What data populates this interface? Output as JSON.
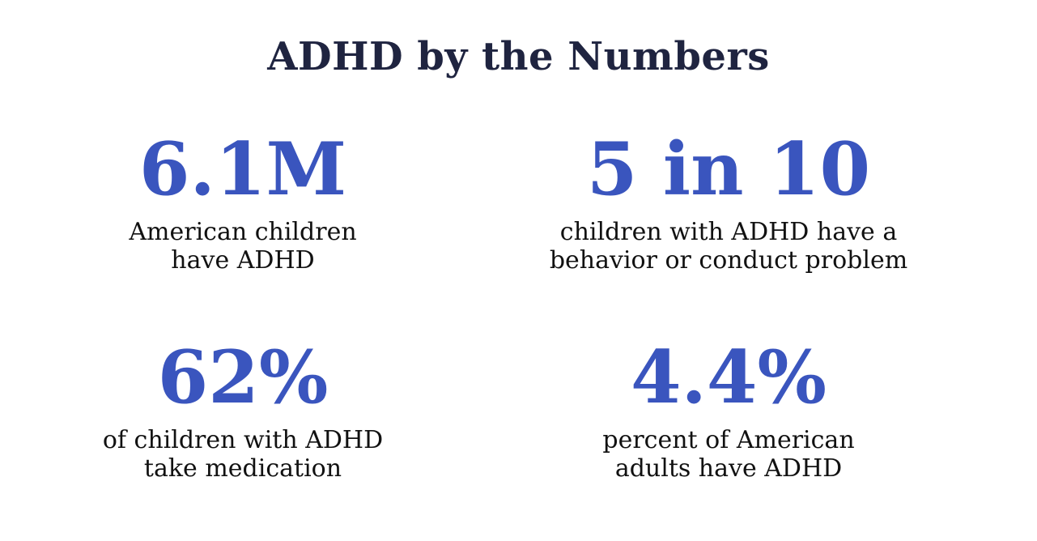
{
  "page": {
    "title": "ADHD by the Numbers"
  },
  "colors": {
    "title_navy": "#1f2440",
    "stat_blue": "#3a55be",
    "caption_black": "#111111",
    "background": "#ffffff"
  },
  "stats": [
    {
      "value": "6.1M",
      "caption": "American children have ADHD",
      "caption_lines": [
        "American children",
        "have ADHD"
      ]
    },
    {
      "value": "5 in 10",
      "caption": "children with ADHD have a behavior or conduct problem",
      "caption_lines": [
        "children with ADHD have a",
        "behavior or conduct problem"
      ]
    },
    {
      "value": "62%",
      "caption": "of children with ADHD take medication",
      "caption_lines": [
        "of children with ADHD",
        "take medication"
      ]
    },
    {
      "value": "4.4%",
      "caption": "percent of American adults have ADHD",
      "caption_lines": [
        "percent of American",
        "adults have ADHD"
      ]
    }
  ],
  "chart_data": {
    "type": "table",
    "title": "ADHD by the Numbers",
    "layout": "2x2 stat grid, big blue numbers with black captions",
    "items": [
      {
        "display_value": "6.1M",
        "numeric_value": 6100000,
        "unit": "children",
        "label": "American children have ADHD"
      },
      {
        "display_value": "5 in 10",
        "numeric_value": 0.5,
        "unit": "ratio",
        "label": "children with ADHD have a behavior or conduct problem"
      },
      {
        "display_value": "62%",
        "numeric_value": 62,
        "unit": "percent",
        "label": "of children with ADHD take medication"
      },
      {
        "display_value": "4.4%",
        "numeric_value": 4.4,
        "unit": "percent",
        "label": "percent of American adults have ADHD"
      }
    ]
  }
}
